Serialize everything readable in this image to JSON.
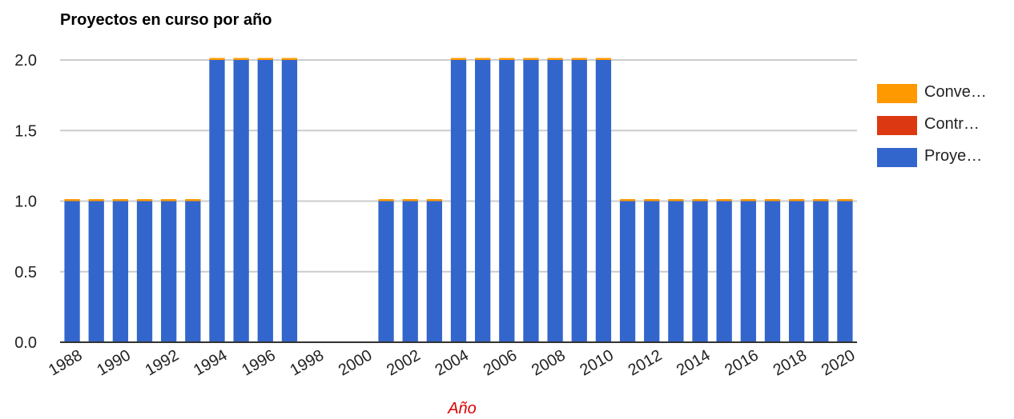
{
  "chart_data": {
    "type": "bar",
    "stacked": true,
    "title": "Proyectos en curso por año",
    "xlabel": "Año",
    "ylabel": "",
    "ylim": [
      0,
      2
    ],
    "yticks": [
      "0.0",
      "0.5",
      "1.0",
      "1.5",
      "2.0"
    ],
    "grid": true,
    "legend_position": "right",
    "categories": [
      "1988",
      "1989",
      "1990",
      "1991",
      "1992",
      "1993",
      "1994",
      "1995",
      "1996",
      "1997",
      "1998",
      "1999",
      "2000",
      "2001",
      "2002",
      "2003",
      "2004",
      "2005",
      "2006",
      "2007",
      "2008",
      "2009",
      "2010",
      "2011",
      "2012",
      "2013",
      "2014",
      "2015",
      "2016",
      "2017",
      "2018",
      "2019",
      "2020"
    ],
    "x_tick_labels": [
      "1988",
      "1990",
      "1992",
      "1994",
      "1996",
      "1998",
      "2000",
      "2002",
      "2004",
      "2006",
      "2008",
      "2010",
      "2012",
      "2014",
      "2016",
      "2018",
      "2020"
    ],
    "series": [
      {
        "name": "Proye…",
        "color": "#3366cc",
        "values": [
          1,
          1,
          1,
          1,
          1,
          1,
          2,
          2,
          2,
          2,
          0,
          0,
          0,
          1,
          1,
          1,
          2,
          2,
          2,
          2,
          2,
          2,
          2,
          1,
          1,
          1,
          1,
          1,
          1,
          1,
          1,
          1,
          1
        ]
      },
      {
        "name": "Contr…",
        "color": "#dc3912",
        "values": [
          0,
          0,
          0,
          0,
          0,
          0,
          0,
          0,
          0,
          0,
          0,
          0,
          0,
          0,
          0,
          0,
          0,
          0,
          0,
          0,
          0,
          0,
          0,
          0,
          0,
          0,
          0,
          0,
          0,
          0,
          0,
          0,
          0
        ]
      },
      {
        "name": "Conve…",
        "color": "#ff9900",
        "values": [
          0.01,
          0.01,
          0.01,
          0.01,
          0.01,
          0.01,
          0.01,
          0.01,
          0.01,
          0.01,
          0,
          0,
          0,
          0.01,
          0.01,
          0.01,
          0.01,
          0.01,
          0.01,
          0.01,
          0.01,
          0.01,
          0.01,
          0.01,
          0.01,
          0.01,
          0.01,
          0.01,
          0.01,
          0.01,
          0.01,
          0.01,
          0.01
        ]
      }
    ],
    "legend_order": [
      "Conve…",
      "Contr…",
      "Proye…"
    ]
  }
}
